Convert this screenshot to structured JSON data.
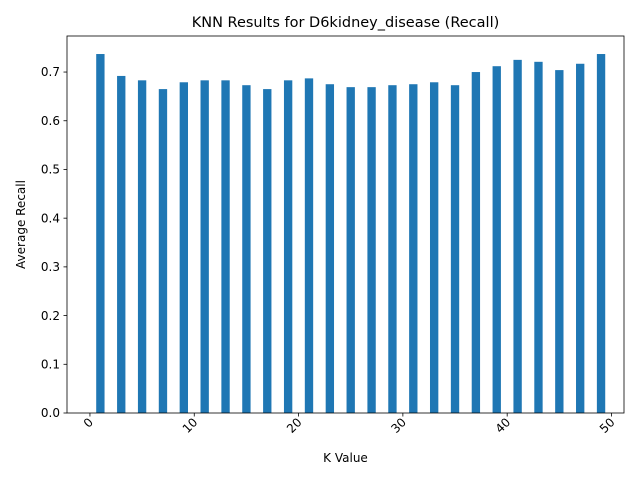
{
  "chart_data": {
    "type": "bar",
    "title": "KNN Results for D6kidney_disease (Recall)",
    "xlabel": "K Value",
    "ylabel": "Average Recall",
    "x": [
      1,
      3,
      5,
      7,
      9,
      11,
      13,
      15,
      17,
      19,
      21,
      23,
      25,
      27,
      29,
      31,
      33,
      35,
      37,
      39,
      41,
      43,
      45,
      47,
      49
    ],
    "values": [
      0.737,
      0.692,
      0.683,
      0.665,
      0.679,
      0.683,
      0.683,
      0.673,
      0.665,
      0.683,
      0.687,
      0.675,
      0.669,
      0.669,
      0.673,
      0.675,
      0.679,
      0.673,
      0.7,
      0.712,
      0.725,
      0.721,
      0.704,
      0.717,
      0.737
    ],
    "xlim": [
      -2.2,
      51.2
    ],
    "ylim": [
      0,
      0.774
    ],
    "xticks": [
      0,
      10,
      20,
      30,
      40,
      50
    ],
    "yticks": [
      0.0,
      0.1,
      0.2,
      0.3,
      0.4,
      0.5,
      0.6,
      0.7
    ],
    "xtick_labels": [
      "0",
      "10",
      "20",
      "30",
      "40",
      "50"
    ],
    "ytick_labels": [
      "0.0",
      "0.1",
      "0.2",
      "0.3",
      "0.4",
      "0.5",
      "0.6",
      "0.7"
    ],
    "bar_width_units": 0.8,
    "bar_color": "#1f77b4",
    "grid": false,
    "legend": "none"
  }
}
